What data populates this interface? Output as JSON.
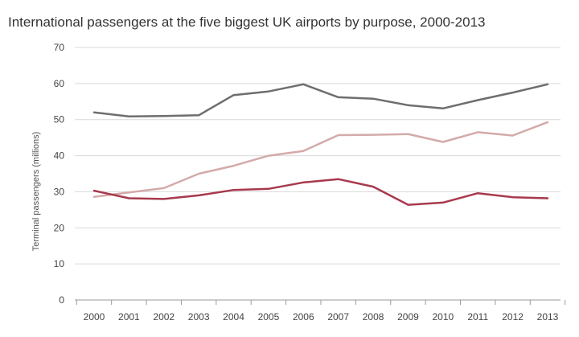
{
  "chart_data": {
    "type": "line",
    "title": "International passengers at the five biggest UK airports by purpose, 2000-2013",
    "xlabel": "",
    "ylabel": "Terminal passengers (millions)",
    "ylim": [
      0,
      70
    ],
    "yticks": [
      0,
      10,
      20,
      30,
      40,
      50,
      60,
      70
    ],
    "grid": true,
    "legend": "none",
    "x": [
      "2000",
      "2001",
      "2002",
      "2003",
      "2004",
      "2005",
      "2006",
      "2007",
      "2008",
      "2009",
      "2010",
      "2011",
      "2012",
      "2013"
    ],
    "series": [
      {
        "color": "#6e6e6e",
        "values": [
          52.0,
          50.9,
          51.0,
          51.2,
          56.8,
          57.8,
          59.8,
          56.2,
          55.8,
          54.0,
          53.1,
          55.4,
          57.5,
          59.8
        ]
      },
      {
        "color": "#d4aaaa",
        "values": [
          28.6,
          29.8,
          31.0,
          35.0,
          37.2,
          40.0,
          41.3,
          45.7,
          45.8,
          46.0,
          43.8,
          46.5,
          45.6,
          49.3
        ]
      },
      {
        "color": "#a8394d",
        "values": [
          30.3,
          28.2,
          28.0,
          29.0,
          30.5,
          30.8,
          32.6,
          33.5,
          31.4,
          26.4,
          27.0,
          29.6,
          28.5,
          28.2
        ]
      }
    ]
  }
}
